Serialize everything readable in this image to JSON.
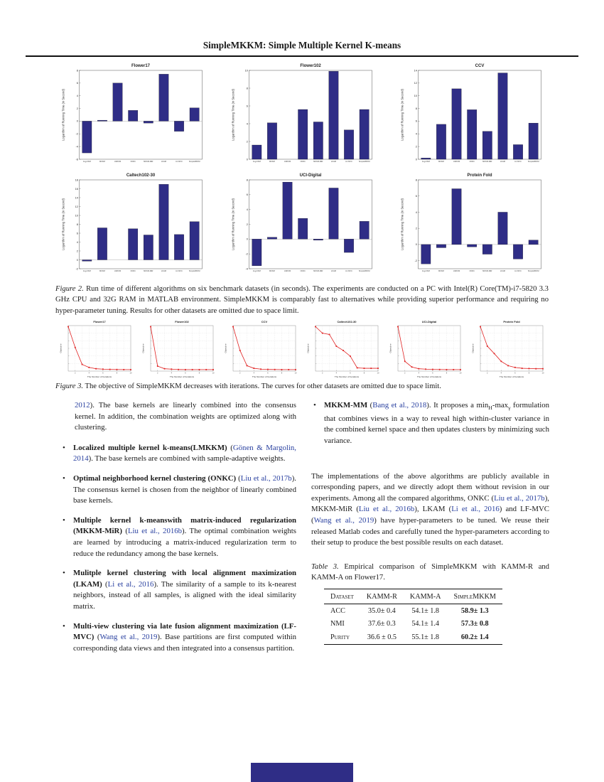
{
  "header": {
    "title": "SimpleMKKM: Simple Multiple Kernel K-means"
  },
  "colors": {
    "bar": "#2f2d86",
    "line": "#e02222",
    "link": "#2a41a0",
    "grid": "#c8c8c8",
    "footer_bar": "#2f2d86"
  },
  "chart_data": [
    {
      "type": "bar",
      "title": "Flower17",
      "ylabel": "Logarithm of Running Time (in Second)",
      "categories": [
        "Avg-KKM",
        "MKKM",
        "LMKKM",
        "ONKC",
        "MKKM-MiR",
        "LKAM",
        "LF-MVC",
        "SimpleMKKM"
      ],
      "values": [
        -5.0,
        0.15,
        6.0,
        1.7,
        -0.3,
        7.4,
        -1.6,
        2.1
      ],
      "ylim": [
        -6,
        8
      ]
    },
    {
      "type": "bar",
      "title": "Flower102",
      "ylabel": "Logarithm of Running Time (in Second)",
      "categories": [
        "Avg-KKM",
        "MKKM",
        "LMKKM",
        "ONKC",
        "MKKM-MiR",
        "LKAM",
        "LF-MVC",
        "SimpleMKKM"
      ],
      "values": [
        1.6,
        4.1,
        0,
        5.6,
        4.2,
        9.9,
        3.3,
        5.6
      ],
      "ylim": [
        0,
        10
      ]
    },
    {
      "type": "bar",
      "title": "CCV",
      "ylabel": "Logarithm of Running Time (in Second)",
      "categories": [
        "Avg-KKM",
        "MKKM",
        "LMKKM",
        "ONKC",
        "MKKM-MiR",
        "LKAM",
        "LF-MVC",
        "SimpleMKKM"
      ],
      "values": [
        0.2,
        5.5,
        11.1,
        7.8,
        4.4,
        13.6,
        2.3,
        5.7
      ],
      "ylim": [
        0,
        14
      ]
    },
    {
      "type": "bar",
      "title": "Caltech102-30",
      "ylabel": "Logarithm of Running Time (in Second)",
      "categories": [
        "Avg-KKM",
        "MKKM",
        "LMKKM",
        "ONKC",
        "MKKM-MiR",
        "LKAM",
        "LF-MVC",
        "SimpleMKKM"
      ],
      "values": [
        -0.3,
        7.2,
        0,
        7.0,
        5.6,
        17.0,
        5.7,
        8.6
      ],
      "ylim": [
        -2,
        18
      ]
    },
    {
      "type": "bar",
      "title": "UCI-Digital",
      "ylabel": "Logarithm of Running Time (in Second)",
      "categories": [
        "Avg-KKM",
        "MKKM",
        "LMKKM",
        "ONKC",
        "MKKM-MiR",
        "LKAM",
        "LF-MVC",
        "SimpleMKKM"
      ],
      "values": [
        -3.6,
        0.25,
        7.7,
        2.8,
        -0.15,
        6.9,
        -1.8,
        2.4
      ],
      "ylim": [
        -4,
        8
      ]
    },
    {
      "type": "bar",
      "title": "Protein Fold",
      "ylabel": "Logarithm of Running Time (in Second)",
      "categories": [
        "Avg-KKM",
        "MKKM",
        "LMKKM",
        "ONKC",
        "MKKM-MiR",
        "LKAM",
        "LF-MVC",
        "SimpleMKKM"
      ],
      "values": [
        -2.4,
        -0.4,
        6.9,
        -0.3,
        -1.2,
        4.0,
        -1.8,
        0.55
      ],
      "ylim": [
        -3,
        8
      ]
    },
    {
      "type": "line",
      "title": "Flower17",
      "xlabel": "The Number of Iterations",
      "ylabel": "Objective",
      "x": [
        1,
        2,
        3,
        4,
        5,
        6,
        7,
        8,
        9,
        10
      ],
      "values": [
        1.0,
        0.52,
        0.13,
        0.06,
        0.03,
        0.02,
        0.015,
        0.012,
        0.01,
        0.01
      ]
    },
    {
      "type": "line",
      "title": "Flower102",
      "xlabel": "The Number of Iterations",
      "ylabel": "Objective",
      "x": [
        1,
        2,
        3,
        4,
        5,
        6,
        7,
        8,
        9,
        10
      ],
      "values": [
        1.0,
        0.09,
        0.03,
        0.02,
        0.012,
        0.01,
        0.01,
        0.01,
        0.01,
        0.01
      ]
    },
    {
      "type": "line",
      "title": "CCV",
      "xlabel": "The Number of Iterations",
      "ylabel": "Objective",
      "x": [
        1,
        2,
        3,
        4,
        5,
        6,
        7,
        8,
        9,
        10
      ],
      "values": [
        1.0,
        0.45,
        0.1,
        0.04,
        0.02,
        0.015,
        0.012,
        0.01,
        0.01,
        0.01
      ]
    },
    {
      "type": "line",
      "title": "Caltech102-30",
      "xlabel": "The Number of Iterations",
      "ylabel": "Objective",
      "x": [
        1,
        2,
        3,
        4,
        5,
        6,
        7,
        8,
        9,
        10
      ],
      "values": [
        1.0,
        0.85,
        0.82,
        0.55,
        0.45,
        0.32,
        0.05,
        0.04,
        0.04,
        0.04
      ]
    },
    {
      "type": "line",
      "title": "UCI-Digital",
      "xlabel": "The Number of Iterations",
      "ylabel": "Objective",
      "x": [
        1,
        2,
        3,
        4,
        5,
        6,
        7,
        8,
        9,
        10
      ],
      "values": [
        1.0,
        0.2,
        0.07,
        0.03,
        0.02,
        0.015,
        0.012,
        0.01,
        0.01,
        0.01
      ]
    },
    {
      "type": "line",
      "title": "Protein Fold",
      "xlabel": "The Number of Iterations",
      "ylabel": "Objective",
      "x": [
        1,
        2,
        3,
        4,
        5,
        6,
        7,
        8,
        9,
        10
      ],
      "values": [
        1.0,
        0.55,
        0.38,
        0.2,
        0.1,
        0.06,
        0.04,
        0.035,
        0.03,
        0.03
      ]
    }
  ],
  "figure2_caption": {
    "segments": [
      {
        "t": "Figure 2.",
        "s": "italic"
      },
      {
        "t": " Run time of different algorithms on six benchmark datasets (in seconds). The experiments are conducted on a PC with Intel(R) Core(TM)-i7-5820 3.3 GHz CPU and 32G RAM in MATLAB environment.  SimpleMKKM is comparably fast to alternatives while providing superior performance and requiring no hyper-parameter tuning. Results for other datasets are omitted due to space limit.",
        "s": "plain"
      }
    ]
  },
  "figure3_caption": {
    "segments": [
      {
        "t": "Figure 3.",
        "s": "italic"
      },
      {
        "t": " The objective of SimpleMKKM decreases with iterations. The curves for other datasets are omitted due to space limit.",
        "s": "plain"
      }
    ]
  },
  "body": {
    "left_intro": {
      "segments": [
        {
          "t": "2012",
          "s": "link"
        },
        {
          "t": ").  The base kernels are linearly combined into the consensus kernel.  In addition, the combination weights are optimized along with clustering.",
          "s": "plain"
        }
      ]
    },
    "left_bullets": [
      {
        "segments": [
          {
            "t": "Localized multiple kernel k-means(LMKKM)",
            "s": "bold"
          },
          {
            "t": " (",
            "s": "plain"
          },
          {
            "t": "Gönen & Margolin, 2014",
            "s": "link"
          },
          {
            "t": ").  The base kernels are combined with sample-adaptive weights.",
            "s": "plain"
          }
        ]
      },
      {
        "segments": [
          {
            "t": "Optimal neighborhood kernel clustering (ONKC)",
            "s": "bold"
          },
          {
            "t": " (",
            "s": "plain"
          },
          {
            "t": "Liu et al., 2017b",
            "s": "link"
          },
          {
            "t": ").  The consensus kernel is chosen from the neighbor of linearly combined base kernels.",
            "s": "plain"
          }
        ]
      },
      {
        "segments": [
          {
            "t": "Multiple kernel k-meanswith matrix-induced regularization (MKKM-MiR)",
            "s": "bold"
          },
          {
            "t": " (",
            "s": "plain"
          },
          {
            "t": "Liu et al., 2016b",
            "s": "link"
          },
          {
            "t": ").  The optimal combination weights are learned by introducing a matrix-induced regularization term to reduce the redundancy among the base kernels.",
            "s": "plain"
          }
        ]
      },
      {
        "segments": [
          {
            "t": "Mulitple kernel clustering with local alignment maximization (LKAM)",
            "s": "bold"
          },
          {
            "t": " (",
            "s": "plain"
          },
          {
            "t": "Li et al., 2016",
            "s": "link"
          },
          {
            "t": ").  The similarity of a sample to its k-nearest neighbors, instead of all samples, is aligned with the ideal similarity matrix.",
            "s": "plain"
          }
        ]
      },
      {
        "segments": [
          {
            "t": "Multi-view clustering via late fusion alignment maximization (LF-MVC)",
            "s": "bold"
          },
          {
            "t": " (",
            "s": "plain"
          },
          {
            "t": "Wang et al., 2019",
            "s": "link"
          },
          {
            "t": ").  Base partitions are first computed within corresponding data views and then integrated into a consensus partition.",
            "s": "plain"
          }
        ]
      }
    ],
    "right_bullet": {
      "segments": [
        {
          "t": "MKKM-MM",
          "s": "bold"
        },
        {
          "t": " (",
          "s": "plain"
        },
        {
          "t": "Bang et al., 2018",
          "s": "link"
        },
        {
          "t": ").  It proposes a min",
          "s": "plain"
        },
        {
          "t": "H",
          "s": "sub"
        },
        {
          "t": "-max",
          "s": "plain"
        },
        {
          "t": "γ",
          "s": "sub"
        },
        {
          "t": " formulation that combines views in a way to reveal high within-cluster variance in the combined kernel space and then updates clusters by minimizing such variance.",
          "s": "plain"
        }
      ]
    },
    "right_paragraph": {
      "segments": [
        {
          "t": "The implementations of the above algorithms are publicly available in corresponding papers, and we directly adopt them without revision in our experiments.  Among all the compared algorithms, ONKC (",
          "s": "plain"
        },
        {
          "t": "Liu et al., 2017b",
          "s": "link"
        },
        {
          "t": "), MKKM-MiR (",
          "s": "plain"
        },
        {
          "t": "Liu et al., 2016b",
          "s": "link"
        },
        {
          "t": "), LKAM (",
          "s": "plain"
        },
        {
          "t": "Li et al., 2016",
          "s": "link"
        },
        {
          "t": ") and LF-MVC (",
          "s": "plain"
        },
        {
          "t": "Wang et al., 2019",
          "s": "link"
        },
        {
          "t": ") have hyper-parameters to be tuned.  We reuse their released Matlab codes and carefully tuned the hyper-parameters according to their setup to produce the best possible results on each dataset.",
          "s": "plain"
        }
      ]
    }
  },
  "table3": {
    "caption_segments": [
      {
        "t": "Table 3.",
        "s": "italic"
      },
      {
        "t": " Empirical comparison of SimpleMKKM with KAMM-R and KAMM-A on Flower17.",
        "s": "plain"
      }
    ],
    "headers": [
      "Dataset",
      "KAMM-R",
      "KAMM-A",
      "SimpleMKKM"
    ],
    "rows": [
      [
        "ACC",
        "35.0± 0.4",
        "54.1± 1.8",
        "58.9± 1.3"
      ],
      [
        "NMI",
        "37.6± 0.3",
        "54.1± 1.4",
        "57.3± 0.8"
      ],
      [
        "Purity",
        "36.6 ± 0.5",
        "55.1± 1.8",
        "60.2± 1.4"
      ]
    ]
  }
}
